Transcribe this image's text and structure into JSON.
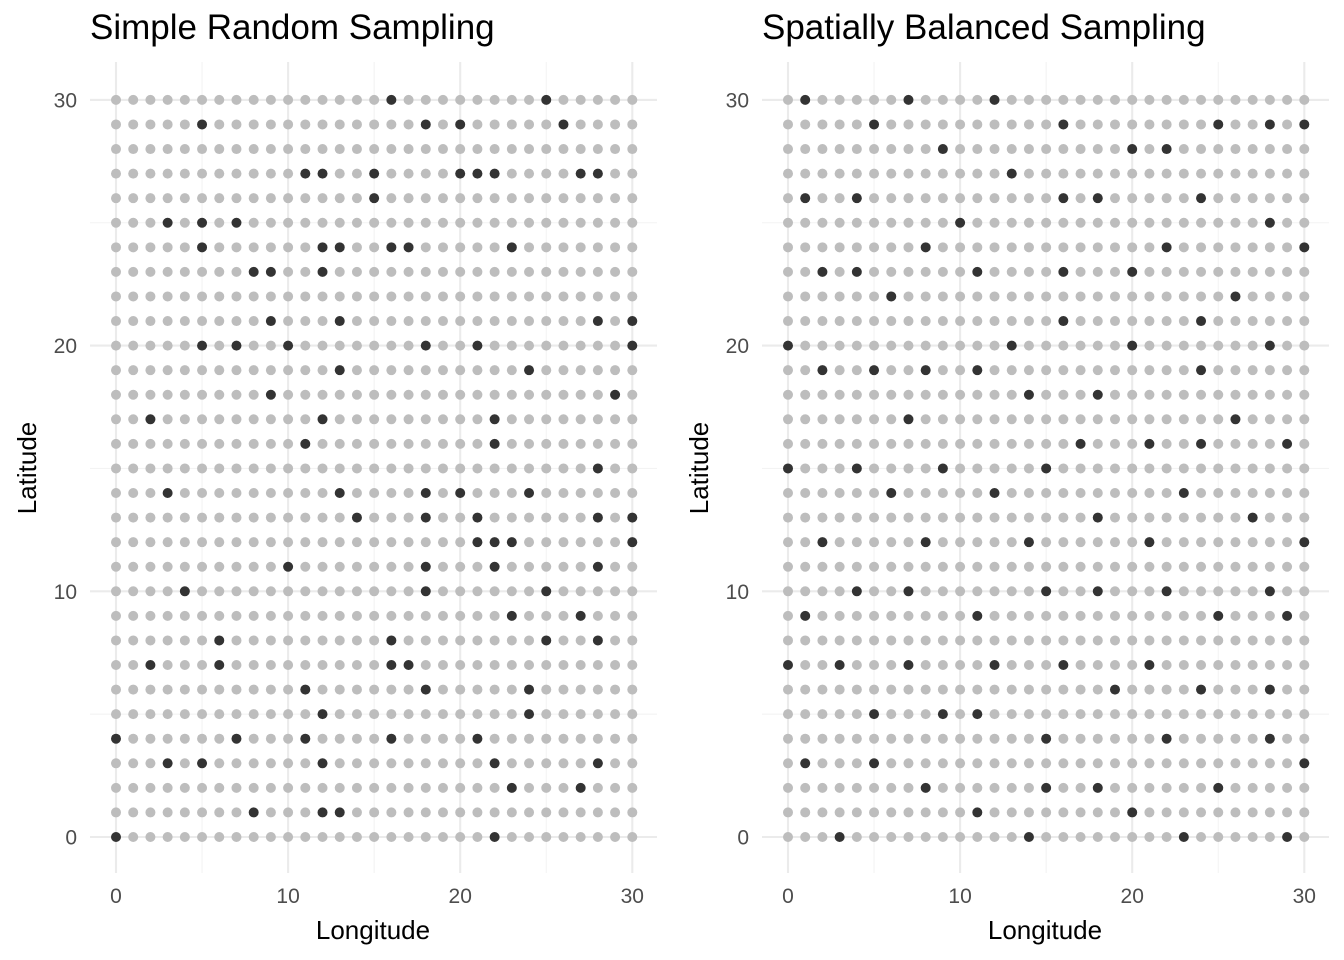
{
  "chart_data": [
    {
      "type": "scatter",
      "title": "Simple Random Sampling",
      "xlabel": "Longitude",
      "ylabel": "Latitude",
      "xlim": [
        -1.5,
        31.5
      ],
      "ylim": [
        -1.5,
        31.5
      ],
      "xticks": [
        0,
        10,
        20,
        30
      ],
      "yticks": [
        0,
        10,
        20,
        30
      ],
      "grid": true,
      "legend": "none",
      "colors": {
        "population": "#bdbdbd",
        "sample": "#333333"
      },
      "population_grid": {
        "x_range": [
          0,
          30
        ],
        "y_range": [
          0,
          30
        ],
        "step": 1
      },
      "sample": [
        [
          16,
          30
        ],
        [
          25,
          30
        ],
        [
          5,
          29
        ],
        [
          18,
          29
        ],
        [
          20,
          29
        ],
        [
          26,
          29
        ],
        [
          11,
          27
        ],
        [
          12,
          27
        ],
        [
          15,
          27
        ],
        [
          20,
          27
        ],
        [
          21,
          27
        ],
        [
          22,
          27
        ],
        [
          27,
          27
        ],
        [
          28,
          27
        ],
        [
          15,
          26
        ],
        [
          3,
          25
        ],
        [
          5,
          25
        ],
        [
          7,
          25
        ],
        [
          5,
          24
        ],
        [
          12,
          24
        ],
        [
          13,
          24
        ],
        [
          16,
          24
        ],
        [
          17,
          24
        ],
        [
          23,
          24
        ],
        [
          8,
          23
        ],
        [
          9,
          23
        ],
        [
          12,
          23
        ],
        [
          9,
          21
        ],
        [
          13,
          21
        ],
        [
          28,
          21
        ],
        [
          30,
          21
        ],
        [
          5,
          20
        ],
        [
          7,
          20
        ],
        [
          10,
          20
        ],
        [
          18,
          20
        ],
        [
          21,
          20
        ],
        [
          30,
          20
        ],
        [
          13,
          19
        ],
        [
          24,
          19
        ],
        [
          9,
          18
        ],
        [
          29,
          18
        ],
        [
          2,
          17
        ],
        [
          12,
          17
        ],
        [
          22,
          17
        ],
        [
          11,
          16
        ],
        [
          22,
          16
        ],
        [
          28,
          15
        ],
        [
          3,
          14
        ],
        [
          13,
          14
        ],
        [
          18,
          14
        ],
        [
          20,
          14
        ],
        [
          24,
          14
        ],
        [
          14,
          13
        ],
        [
          18,
          13
        ],
        [
          21,
          13
        ],
        [
          28,
          13
        ],
        [
          30,
          13
        ],
        [
          21,
          12
        ],
        [
          22,
          12
        ],
        [
          23,
          12
        ],
        [
          30,
          12
        ],
        [
          10,
          11
        ],
        [
          18,
          11
        ],
        [
          22,
          11
        ],
        [
          28,
          11
        ],
        [
          4,
          10
        ],
        [
          18,
          10
        ],
        [
          25,
          10
        ],
        [
          23,
          9
        ],
        [
          27,
          9
        ],
        [
          6,
          8
        ],
        [
          16,
          8
        ],
        [
          25,
          8
        ],
        [
          28,
          8
        ],
        [
          2,
          7
        ],
        [
          6,
          7
        ],
        [
          16,
          7
        ],
        [
          17,
          7
        ],
        [
          11,
          6
        ],
        [
          18,
          6
        ],
        [
          24,
          6
        ],
        [
          12,
          5
        ],
        [
          24,
          5
        ],
        [
          0,
          4
        ],
        [
          7,
          4
        ],
        [
          11,
          4
        ],
        [
          16,
          4
        ],
        [
          21,
          4
        ],
        [
          3,
          3
        ],
        [
          5,
          3
        ],
        [
          12,
          3
        ],
        [
          22,
          3
        ],
        [
          28,
          3
        ],
        [
          23,
          2
        ],
        [
          27,
          2
        ],
        [
          8,
          1
        ],
        [
          12,
          1
        ],
        [
          13,
          1
        ],
        [
          0,
          0
        ],
        [
          22,
          0
        ]
      ]
    },
    {
      "type": "scatter",
      "title": "Spatially Balanced Sampling",
      "xlabel": "Longitude",
      "ylabel": "Latitude",
      "xlim": [
        -1.5,
        31.5
      ],
      "ylim": [
        -1.5,
        31.5
      ],
      "xticks": [
        0,
        10,
        20,
        30
      ],
      "yticks": [
        0,
        10,
        20,
        30
      ],
      "grid": true,
      "legend": "none",
      "colors": {
        "population": "#bdbdbd",
        "sample": "#333333"
      },
      "population_grid": {
        "x_range": [
          0,
          30
        ],
        "y_range": [
          0,
          30
        ],
        "step": 1
      },
      "sample": [
        [
          1,
          30
        ],
        [
          7,
          30
        ],
        [
          12,
          30
        ],
        [
          5,
          29
        ],
        [
          16,
          29
        ],
        [
          25,
          29
        ],
        [
          28,
          29
        ],
        [
          30,
          29
        ],
        [
          9,
          28
        ],
        [
          20,
          28
        ],
        [
          22,
          28
        ],
        [
          13,
          27
        ],
        [
          1,
          26
        ],
        [
          4,
          26
        ],
        [
          16,
          26
        ],
        [
          18,
          26
        ],
        [
          24,
          26
        ],
        [
          10,
          25
        ],
        [
          28,
          25
        ],
        [
          8,
          24
        ],
        [
          22,
          24
        ],
        [
          30,
          24
        ],
        [
          2,
          23
        ],
        [
          4,
          23
        ],
        [
          11,
          23
        ],
        [
          16,
          23
        ],
        [
          20,
          23
        ],
        [
          6,
          22
        ],
        [
          26,
          22
        ],
        [
          16,
          21
        ],
        [
          24,
          21
        ],
        [
          0,
          20
        ],
        [
          13,
          20
        ],
        [
          20,
          20
        ],
        [
          28,
          20
        ],
        [
          2,
          19
        ],
        [
          5,
          19
        ],
        [
          8,
          19
        ],
        [
          11,
          19
        ],
        [
          24,
          19
        ],
        [
          14,
          18
        ],
        [
          18,
          18
        ],
        [
          7,
          17
        ],
        [
          26,
          17
        ],
        [
          17,
          16
        ],
        [
          21,
          16
        ],
        [
          24,
          16
        ],
        [
          29,
          16
        ],
        [
          0,
          15
        ],
        [
          4,
          15
        ],
        [
          9,
          15
        ],
        [
          15,
          15
        ],
        [
          6,
          14
        ],
        [
          12,
          14
        ],
        [
          23,
          14
        ],
        [
          18,
          13
        ],
        [
          27,
          13
        ],
        [
          2,
          12
        ],
        [
          8,
          12
        ],
        [
          14,
          12
        ],
        [
          21,
          12
        ],
        [
          30,
          12
        ],
        [
          4,
          10
        ],
        [
          7,
          10
        ],
        [
          15,
          10
        ],
        [
          18,
          10
        ],
        [
          22,
          10
        ],
        [
          28,
          10
        ],
        [
          1,
          9
        ],
        [
          11,
          9
        ],
        [
          25,
          9
        ],
        [
          29,
          9
        ],
        [
          0,
          7
        ],
        [
          3,
          7
        ],
        [
          7,
          7
        ],
        [
          12,
          7
        ],
        [
          16,
          7
        ],
        [
          21,
          7
        ],
        [
          19,
          6
        ],
        [
          24,
          6
        ],
        [
          28,
          6
        ],
        [
          5,
          5
        ],
        [
          9,
          5
        ],
        [
          11,
          5
        ],
        [
          15,
          4
        ],
        [
          22,
          4
        ],
        [
          28,
          4
        ],
        [
          1,
          3
        ],
        [
          5,
          3
        ],
        [
          30,
          3
        ],
        [
          8,
          2
        ],
        [
          15,
          2
        ],
        [
          18,
          2
        ],
        [
          25,
          2
        ],
        [
          11,
          1
        ],
        [
          20,
          1
        ],
        [
          3,
          0
        ],
        [
          14,
          0
        ],
        [
          23,
          0
        ],
        [
          29,
          0
        ]
      ]
    }
  ]
}
